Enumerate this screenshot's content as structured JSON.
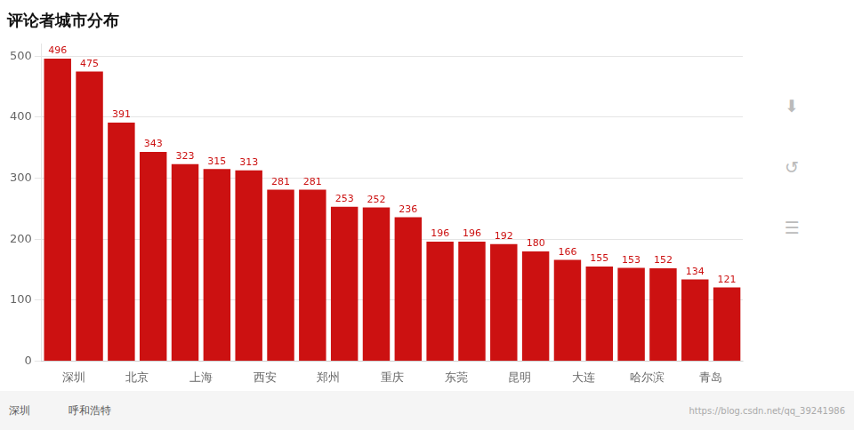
{
  "chart_data": {
    "type": "bar",
    "title": "评论者城市分布",
    "categories": [
      "深圳",
      null,
      "北京",
      null,
      "上海",
      null,
      "西安",
      null,
      "郑州",
      null,
      "重庆",
      null,
      "东莞",
      null,
      "昆明",
      null,
      "大连",
      null,
      "哈尔滨",
      null,
      "青岛",
      null
    ],
    "values": [
      496,
      475,
      391,
      343,
      323,
      315,
      313,
      281,
      281,
      253,
      252,
      236,
      196,
      196,
      192,
      180,
      166,
      155,
      153,
      152,
      134,
      121
    ],
    "color": "#CC1111",
    "ylim": [
      0,
      520
    ],
    "yticks": [
      0,
      100,
      200,
      300,
      400,
      500
    ],
    "grid": true,
    "data_labels": true,
    "annotations": [
      "深圳",
      "呼和浩特",
      "https://blog.csdn.net/qq_39241986",
      "⬇",
      "↺",
      "☰"
    ]
  }
}
